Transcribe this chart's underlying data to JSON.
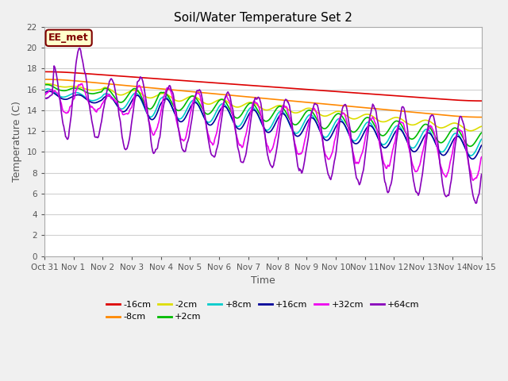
{
  "title": "Soil/Water Temperature Set 2",
  "xlabel": "Time",
  "ylabel": "Temperature (C)",
  "ylim": [
    0,
    22
  ],
  "yticks": [
    0,
    2,
    4,
    6,
    8,
    10,
    12,
    14,
    16,
    18,
    20,
    22
  ],
  "fig_bg": "#f0f0f0",
  "plot_bg": "#ffffff",
  "grid_color": "#d0d0d0",
  "annotation_text": "EE_met",
  "annotation_bg": "#ffffcc",
  "annotation_border": "#800000",
  "series": {
    "-16cm": {
      "color": "#dd0000",
      "linewidth": 1.2
    },
    "-8cm": {
      "color": "#ff8800",
      "linewidth": 1.2
    },
    "-2cm": {
      "color": "#dddd00",
      "linewidth": 1.2
    },
    "+2cm": {
      "color": "#00bb00",
      "linewidth": 1.2
    },
    "+8cm": {
      "color": "#00cccc",
      "linewidth": 1.2
    },
    "+16cm": {
      "color": "#000099",
      "linewidth": 1.2
    },
    "+32cm": {
      "color": "#ee00ee",
      "linewidth": 1.2
    },
    "+64cm": {
      "color": "#8800bb",
      "linewidth": 1.2
    }
  },
  "legend_order": [
    "-16cm",
    "-8cm",
    "-2cm",
    "+2cm",
    "+8cm",
    "+16cm",
    "+32cm",
    "+64cm"
  ],
  "xtick_labels": [
    "Oct 31",
    "Nov 1",
    "Nov 2",
    "Nov 3",
    "Nov 4",
    "Nov 5",
    "Nov 6",
    "Nov 7",
    "Nov 8",
    "Nov 9",
    "Nov 10",
    "Nov 11",
    "Nov 12",
    "Nov 13",
    "Nov 14",
    "Nov 15"
  ],
  "n_days": 15,
  "pts_per_day": 48
}
